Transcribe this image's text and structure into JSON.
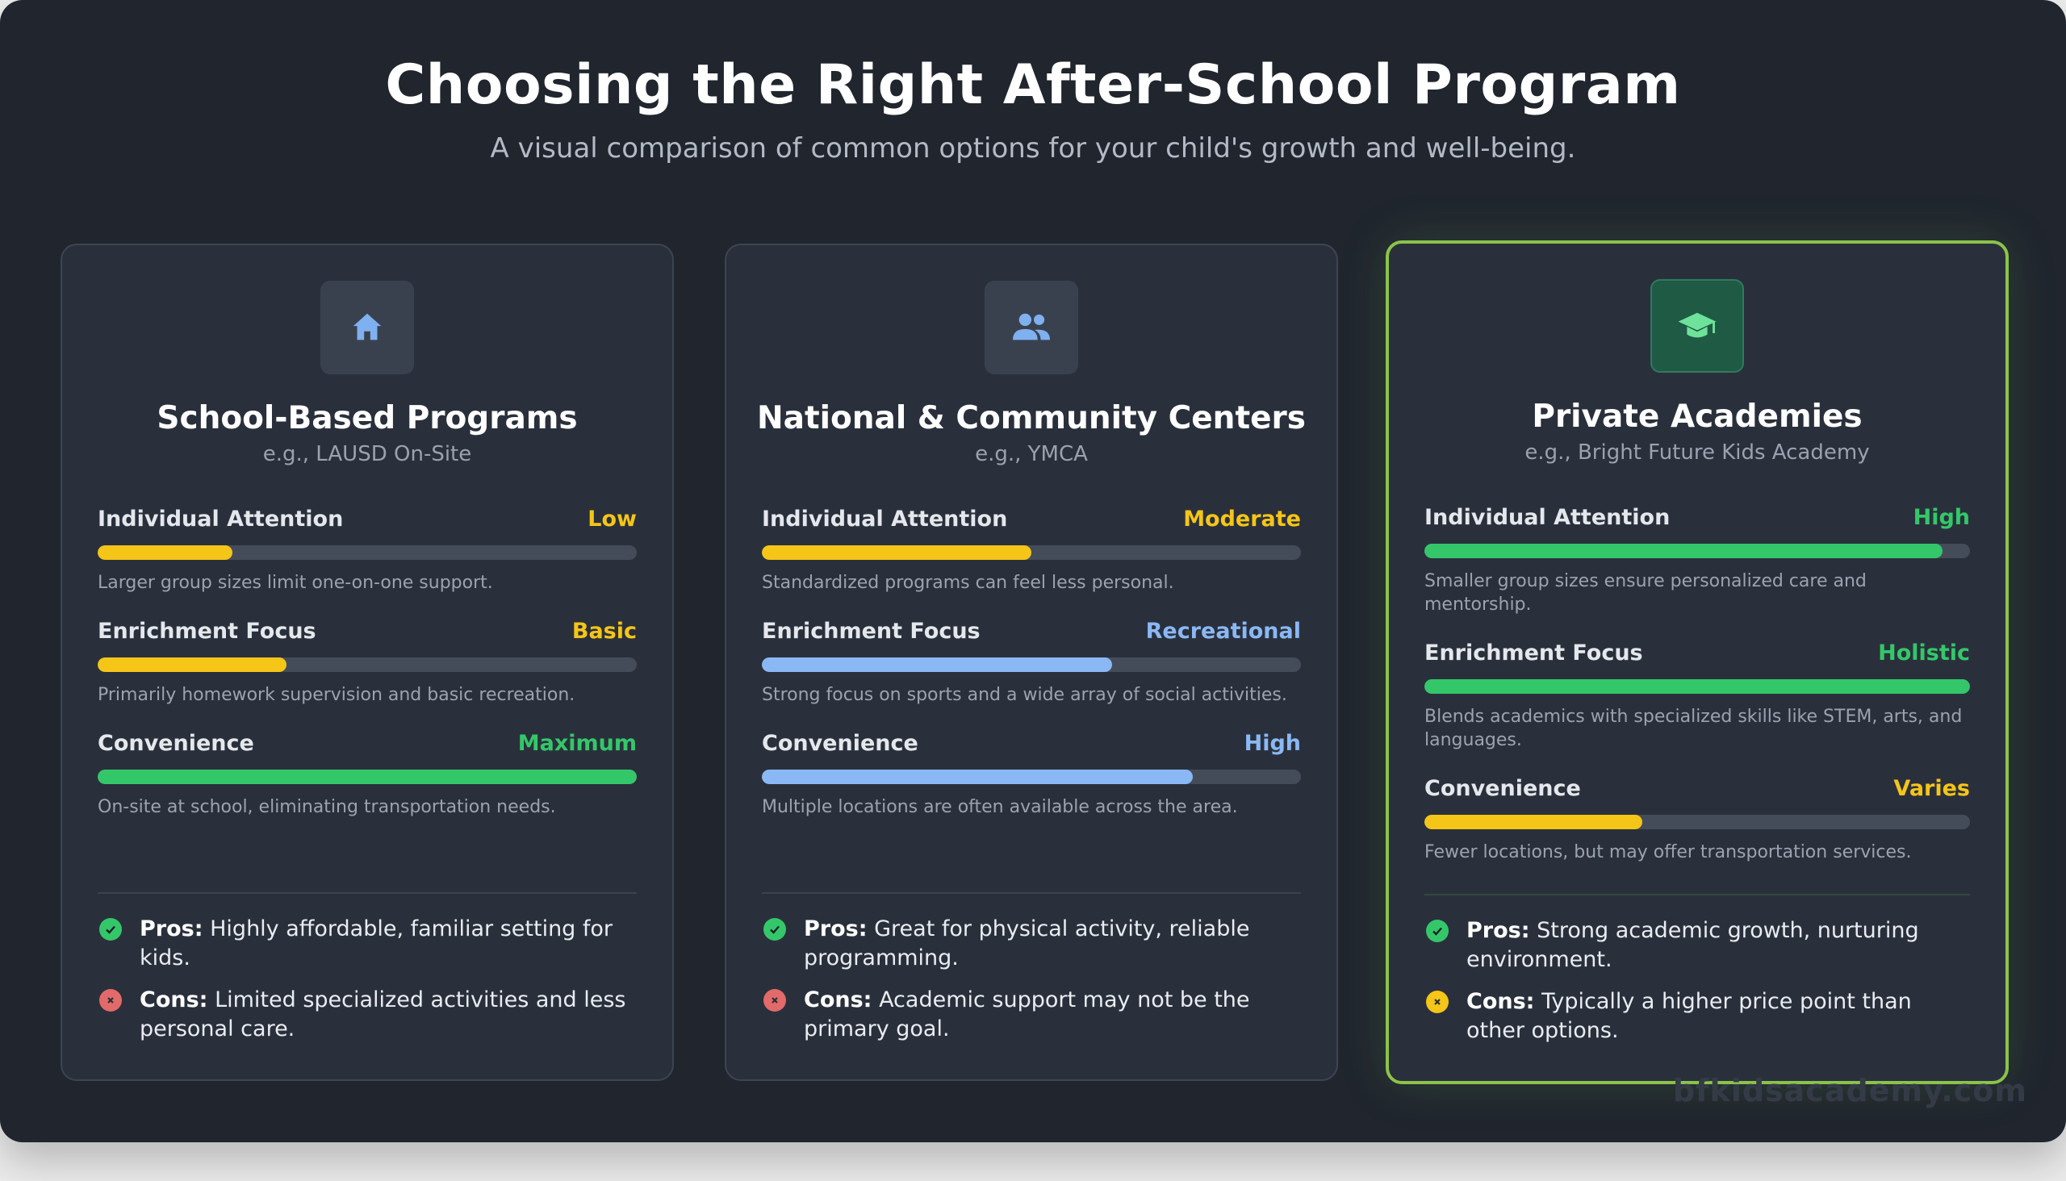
{
  "header": {
    "title": "Choosing the Right After-School Program",
    "subtitle": "A visual comparison of common options for your child's growth and well-being."
  },
  "colors": {
    "yellow": "#f5c518",
    "green": "#34c76a",
    "blue": "#8ab8f5",
    "red": "#e36a6a",
    "accent_border": "#8bc34a"
  },
  "cards": [
    {
      "icon": "home-icon",
      "title": "School-Based Programs",
      "subtitle": "e.g., LAUSD On-Site",
      "metrics": [
        {
          "label": "Individual Attention",
          "value": "Low",
          "level": 0.25,
          "color": "yellow",
          "desc": "Larger group sizes limit one-on-one support."
        },
        {
          "label": "Enrichment Focus",
          "value": "Basic",
          "level": 0.35,
          "color": "yellow",
          "desc": "Primarily homework supervision and basic recreation."
        },
        {
          "label": "Convenience",
          "value": "Maximum",
          "level": 1.0,
          "color": "green",
          "desc": "On-site at school, eliminating transportation needs."
        }
      ],
      "pros_label": "Pros:",
      "pros": "Highly affordable, familiar setting for kids.",
      "cons_label": "Cons:",
      "cons": "Limited specialized activities and less personal care.",
      "cons_icon": "x-circle-icon"
    },
    {
      "icon": "people-icon",
      "title": "National & Community Centers",
      "subtitle": "e.g., YMCA",
      "metrics": [
        {
          "label": "Individual Attention",
          "value": "Moderate",
          "level": 0.5,
          "color": "yellow",
          "desc": "Standardized programs can feel less personal."
        },
        {
          "label": "Enrichment Focus",
          "value": "Recreational",
          "level": 0.65,
          "color": "blue",
          "desc": "Strong focus on sports and a wide array of social activities."
        },
        {
          "label": "Convenience",
          "value": "High",
          "level": 0.8,
          "color": "blue",
          "desc": "Multiple locations are often available across the area."
        }
      ],
      "pros_label": "Pros:",
      "pros": "Great for physical activity, reliable programming.",
      "cons_label": "Cons:",
      "cons": "Academic support may not be the primary goal.",
      "cons_icon": "x-circle-icon"
    },
    {
      "icon": "graduation-cap-icon",
      "title": "Private Academies",
      "subtitle": "e.g., Bright Future Kids Academy",
      "metrics": [
        {
          "label": "Individual Attention",
          "value": "High",
          "level": 0.95,
          "color": "green",
          "desc": "Smaller group sizes ensure personalized care and mentorship."
        },
        {
          "label": "Enrichment Focus",
          "value": "Holistic",
          "level": 1.0,
          "color": "green",
          "desc": "Blends academics with specialized skills like STEM, arts, and languages."
        },
        {
          "label": "Convenience",
          "value": "Varies",
          "level": 0.4,
          "color": "yellow",
          "desc": "Fewer locations, but may offer transportation services."
        }
      ],
      "pros_label": "Pros:",
      "pros": "Strong academic growth, nurturing environment.",
      "cons_label": "Cons:",
      "cons": "Typically a higher price point than other options.",
      "cons_icon": "x-circle-warning-icon"
    }
  ],
  "watermark": "bfkidsacademy.com"
}
